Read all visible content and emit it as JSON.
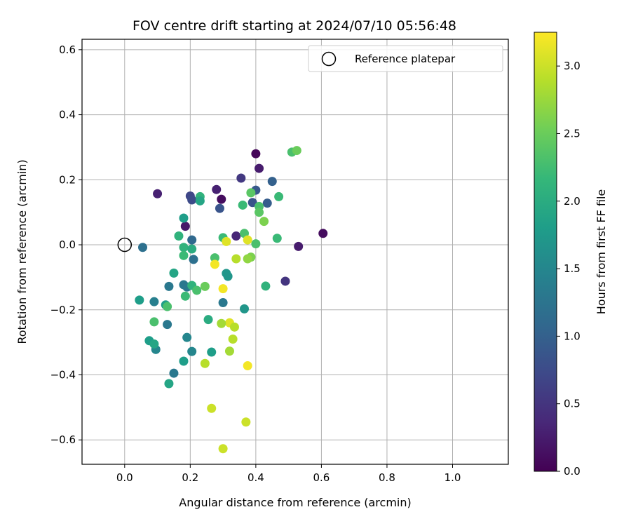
{
  "chart_data": {
    "type": "scatter",
    "title": "FOV centre drift starting at 2024/07/10 05:56:48",
    "xlabel": "Angular distance from reference (arcmin)",
    "ylabel": "Rotation from reference (arcmin)",
    "xlim": [
      -0.13,
      1.17
    ],
    "ylim": [
      -0.675,
      0.632
    ],
    "xticks": [
      0.0,
      0.2,
      0.4,
      0.6,
      0.8,
      1.0
    ],
    "xtick_labels": [
      "0.0",
      "0.2",
      "0.4",
      "0.6",
      "0.8",
      "1.0"
    ],
    "yticks": [
      -0.6,
      -0.4,
      -0.2,
      0.0,
      0.2,
      0.4,
      0.6
    ],
    "ytick_labels": [
      "−0.6",
      "−0.4",
      "−0.2",
      "0.0",
      "0.2",
      "0.4",
      "0.6"
    ],
    "grid": true,
    "legend": {
      "placement": "top-right",
      "entries": [
        "Reference platepar"
      ]
    },
    "reference_point": {
      "x": 0.0,
      "y": 0.0,
      "name": "Reference platepar"
    },
    "colorbar": {
      "label": "Hours from first FF file",
      "range": [
        0.0,
        3.25
      ],
      "ticks": [
        0.0,
        0.5,
        1.0,
        1.5,
        2.0,
        2.5,
        3.0
      ],
      "tick_labels": [
        "0.0",
        "0.5",
        "1.0",
        "1.5",
        "2.0",
        "2.5",
        "3.0"
      ],
      "colormap": "viridis"
    },
    "colormap_stops": [
      "#440154",
      "#482878",
      "#3e4989",
      "#31688e",
      "#26828e",
      "#1f9e89",
      "#35b779",
      "#6ece58",
      "#b5de2b",
      "#fde725"
    ],
    "points": [
      {
        "x": 0.4,
        "y": 0.28,
        "t": 0.05
      },
      {
        "x": 0.41,
        "y": 0.235,
        "t": 0.25
      },
      {
        "x": 0.1,
        "y": 0.157,
        "t": 0.3
      },
      {
        "x": 0.295,
        "y": 0.14,
        "t": 0.1
      },
      {
        "x": 0.28,
        "y": 0.17,
        "t": 0.3
      },
      {
        "x": 0.185,
        "y": 0.057,
        "t": 0.2
      },
      {
        "x": 0.605,
        "y": 0.035,
        "t": 0.1
      },
      {
        "x": 0.53,
        "y": -0.005,
        "t": 0.25
      },
      {
        "x": 0.49,
        "y": -0.112,
        "t": 0.5
      },
      {
        "x": 0.355,
        "y": 0.205,
        "t": 0.55
      },
      {
        "x": 0.34,
        "y": 0.027,
        "t": 0.35
      },
      {
        "x": 0.2,
        "y": 0.15,
        "t": 0.7
      },
      {
        "x": 0.205,
        "y": 0.138,
        "t": 0.75
      },
      {
        "x": 0.29,
        "y": 0.112,
        "t": 0.85
      },
      {
        "x": 0.4,
        "y": 0.168,
        "t": 0.9
      },
      {
        "x": 0.435,
        "y": 0.128,
        "t": 0.95
      },
      {
        "x": 0.45,
        "y": 0.195,
        "t": 1.0
      },
      {
        "x": 0.39,
        "y": 0.13,
        "t": 0.85
      },
      {
        "x": 0.205,
        "y": 0.015,
        "t": 1.1
      },
      {
        "x": 0.055,
        "y": -0.008,
        "t": 1.2
      },
      {
        "x": 0.21,
        "y": -0.045,
        "t": 1.2
      },
      {
        "x": 0.135,
        "y": -0.128,
        "t": 1.3
      },
      {
        "x": 0.18,
        "y": -0.123,
        "t": 1.3
      },
      {
        "x": 0.19,
        "y": -0.13,
        "t": 1.3
      },
      {
        "x": 0.3,
        "y": -0.178,
        "t": 1.3
      },
      {
        "x": 0.09,
        "y": -0.175,
        "t": 1.4
      },
      {
        "x": 0.13,
        "y": -0.245,
        "t": 1.3
      },
      {
        "x": 0.15,
        "y": -0.395,
        "t": 1.3
      },
      {
        "x": 0.205,
        "y": -0.328,
        "t": 1.5
      },
      {
        "x": 0.095,
        "y": -0.322,
        "t": 1.5
      },
      {
        "x": 0.19,
        "y": -0.285,
        "t": 1.5
      },
      {
        "x": 0.31,
        "y": -0.088,
        "t": 1.7
      },
      {
        "x": 0.315,
        "y": -0.097,
        "t": 1.7
      },
      {
        "x": 0.365,
        "y": -0.197,
        "t": 1.7
      },
      {
        "x": 0.265,
        "y": -0.33,
        "t": 1.8
      },
      {
        "x": 0.18,
        "y": -0.358,
        "t": 1.8
      },
      {
        "x": 0.075,
        "y": -0.295,
        "t": 1.8
      },
      {
        "x": 0.09,
        "y": -0.305,
        "t": 1.9
      },
      {
        "x": 0.045,
        "y": -0.17,
        "t": 1.8
      },
      {
        "x": 0.125,
        "y": -0.185,
        "t": 1.8
      },
      {
        "x": 0.135,
        "y": -0.427,
        "t": 1.9
      },
      {
        "x": 0.255,
        "y": -0.23,
        "t": 2.0
      },
      {
        "x": 0.15,
        "y": -0.087,
        "t": 1.9
      },
      {
        "x": 0.18,
        "y": 0.082,
        "t": 1.8
      },
      {
        "x": 0.23,
        "y": 0.148,
        "t": 2.1
      },
      {
        "x": 0.23,
        "y": 0.135,
        "t": 1.9
      },
      {
        "x": 0.165,
        "y": 0.027,
        "t": 2.1
      },
      {
        "x": 0.18,
        "y": -0.008,
        "t": 2.1
      },
      {
        "x": 0.205,
        "y": -0.013,
        "t": 2.0
      },
      {
        "x": 0.18,
        "y": -0.033,
        "t": 2.2
      },
      {
        "x": 0.185,
        "y": -0.158,
        "t": 2.2
      },
      {
        "x": 0.205,
        "y": -0.125,
        "t": 2.1
      },
      {
        "x": 0.22,
        "y": -0.14,
        "t": 2.3
      },
      {
        "x": 0.245,
        "y": -0.128,
        "t": 2.5
      },
      {
        "x": 0.13,
        "y": -0.19,
        "t": 2.3
      },
      {
        "x": 0.09,
        "y": -0.237,
        "t": 2.3
      },
      {
        "x": 0.275,
        "y": -0.04,
        "t": 2.3
      },
      {
        "x": 0.3,
        "y": 0.022,
        "t": 2.2
      },
      {
        "x": 0.36,
        "y": 0.122,
        "t": 2.2
      },
      {
        "x": 0.385,
        "y": 0.16,
        "t": 2.4
      },
      {
        "x": 0.41,
        "y": 0.118,
        "t": 2.3
      },
      {
        "x": 0.41,
        "y": 0.1,
        "t": 2.4
      },
      {
        "x": 0.425,
        "y": 0.072,
        "t": 2.6
      },
      {
        "x": 0.365,
        "y": 0.035,
        "t": 2.3
      },
      {
        "x": 0.4,
        "y": 0.003,
        "t": 2.3
      },
      {
        "x": 0.43,
        "y": -0.127,
        "t": 2.1
      },
      {
        "x": 0.465,
        "y": 0.02,
        "t": 2.2
      },
      {
        "x": 0.47,
        "y": 0.148,
        "t": 2.2
      },
      {
        "x": 0.51,
        "y": 0.285,
        "t": 2.3
      },
      {
        "x": 0.525,
        "y": 0.29,
        "t": 2.5
      },
      {
        "x": 0.385,
        "y": -0.038,
        "t": 2.6
      },
      {
        "x": 0.375,
        "y": -0.043,
        "t": 2.7
      },
      {
        "x": 0.34,
        "y": -0.043,
        "t": 2.9
      },
      {
        "x": 0.31,
        "y": 0.01,
        "t": 3.1
      },
      {
        "x": 0.375,
        "y": 0.015,
        "t": 3.1
      },
      {
        "x": 0.275,
        "y": -0.06,
        "t": 3.2
      },
      {
        "x": 0.3,
        "y": -0.135,
        "t": 3.2
      },
      {
        "x": 0.32,
        "y": -0.24,
        "t": 3.1
      },
      {
        "x": 0.295,
        "y": -0.242,
        "t": 2.8
      },
      {
        "x": 0.335,
        "y": -0.253,
        "t": 2.9
      },
      {
        "x": 0.33,
        "y": -0.29,
        "t": 2.9
      },
      {
        "x": 0.32,
        "y": -0.327,
        "t": 2.8
      },
      {
        "x": 0.245,
        "y": -0.365,
        "t": 2.9
      },
      {
        "x": 0.375,
        "y": -0.372,
        "t": 3.2
      },
      {
        "x": 0.265,
        "y": -0.503,
        "t": 3.0
      },
      {
        "x": 0.37,
        "y": -0.545,
        "t": 3.0
      },
      {
        "x": 0.3,
        "y": -0.627,
        "t": 3.0
      }
    ]
  }
}
